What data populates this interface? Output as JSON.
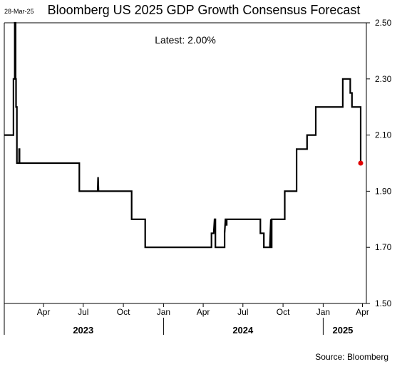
{
  "header": {
    "date_stamp": "28-Mar-25",
    "title": "Bloomberg US 2025 GDP Growth Consensus Forecast",
    "latest_label": "Latest:",
    "latest_value": "2.00%"
  },
  "footer": {
    "source": "Source: Bloomberg"
  },
  "chart_data": {
    "type": "line",
    "title": "Bloomberg US 2025 GDP Growth Consensus Forecast",
    "xlabel": "",
    "ylabel": "",
    "y_axis_side": "right",
    "ylim": [
      1.5,
      2.5
    ],
    "yticks": [
      "2.50",
      "2.30",
      "2.10",
      "1.90",
      "1.70",
      "1.50"
    ],
    "ytick_values": [
      2.5,
      2.3,
      2.1,
      1.9,
      1.7,
      1.5
    ],
    "xlim": [
      "2023-01-01",
      "2025-04-10"
    ],
    "x_month_ticks": [
      {
        "label": "Apr",
        "date": "2023-04-01"
      },
      {
        "label": "Jul",
        "date": "2023-07-01"
      },
      {
        "label": "Oct",
        "date": "2023-10-01"
      },
      {
        "label": "Jan",
        "date": "2024-01-01"
      },
      {
        "label": "Apr",
        "date": "2024-04-01"
      },
      {
        "label": "Jul",
        "date": "2024-07-01"
      },
      {
        "label": "Oct",
        "date": "2024-10-01"
      },
      {
        "label": "Jan",
        "date": "2025-01-01"
      },
      {
        "label": "Apr",
        "date": "2025-04-01"
      }
    ],
    "x_year_labels": [
      {
        "label": "2023",
        "date": "2023-07-01"
      },
      {
        "label": "2024",
        "date": "2024-07-01"
      },
      {
        "label": "2025",
        "date": "2025-02-15"
      }
    ],
    "x_year_separators": [
      "2024-01-01",
      "2025-01-01"
    ],
    "grid": false,
    "legend": "none",
    "colors": {
      "line": "#000000",
      "latest_marker": "#e00000"
    },
    "series": [
      {
        "x": [
          "2023-01-01",
          "2023-01-22",
          "2023-01-22",
          "2023-01-25",
          "2023-01-25",
          "2023-01-27",
          "2023-01-27",
          "2023-01-28",
          "2023-01-28",
          "2023-01-30",
          "2023-01-30",
          "2023-02-04",
          "2023-02-04",
          "2023-02-05",
          "2023-02-05",
          "2023-06-22",
          "2023-06-22",
          "2023-08-03",
          "2023-08-04",
          "2023-08-05",
          "2023-10-20",
          "2023-10-20",
          "2023-11-20",
          "2023-11-20",
          "2024-02-20",
          "2024-04-20",
          "2024-04-20",
          "2024-04-25",
          "2024-04-27",
          "2024-04-29",
          "2024-04-29",
          "2024-05-20",
          "2024-05-20",
          "2024-05-22",
          "2024-05-24",
          "2024-05-24",
          "2024-05-25",
          "2024-05-25",
          "2024-08-10",
          "2024-08-10",
          "2024-08-18",
          "2024-08-18",
          "2024-09-01",
          "2024-09-01",
          "2024-09-03",
          "2024-09-04",
          "2024-09-05",
          "2024-09-05",
          "2024-10-05",
          "2024-10-05",
          "2024-11-01",
          "2024-11-01",
          "2024-11-25",
          "2024-11-25",
          "2024-12-08",
          "2024-12-08",
          "2024-12-15",
          "2024-12-15",
          "2025-01-20",
          "2025-01-20",
          "2025-02-15",
          "2025-02-15",
          "2025-03-04",
          "2025-03-04",
          "2025-03-08",
          "2025-03-08",
          "2025-03-18",
          "2025-03-18",
          "2025-03-28",
          "2025-03-28"
        ],
        "y": [
          2.1,
          2.1,
          2.3,
          2.3,
          2.5,
          2.5,
          2.3,
          2.3,
          2.2,
          2.2,
          2.0,
          2.0,
          2.05,
          2.05,
          2.0,
          2.0,
          1.9,
          1.9,
          1.95,
          1.9,
          1.9,
          1.8,
          1.8,
          1.7,
          1.7,
          1.7,
          1.75,
          1.75,
          1.8,
          1.8,
          1.7,
          1.7,
          1.75,
          1.8,
          1.8,
          1.78,
          1.78,
          1.8,
          1.8,
          1.75,
          1.75,
          1.7,
          1.7,
          1.71,
          1.8,
          1.7,
          1.7,
          1.8,
          1.8,
          1.9,
          1.9,
          2.05,
          2.05,
          2.1,
          2.1,
          2.1,
          2.1,
          2.2,
          2.2,
          2.2,
          2.2,
          2.3,
          2.3,
          2.25,
          2.25,
          2.2,
          2.2,
          2.2,
          2.2,
          2.0
        ]
      }
    ],
    "latest_point": {
      "x": "2025-03-28",
      "y": 2.0
    }
  }
}
